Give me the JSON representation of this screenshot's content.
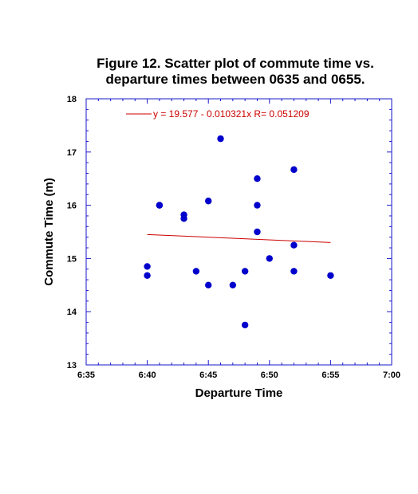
{
  "chart_data": {
    "type": "scatter",
    "title_lines": [
      "Figure 12. Scatter plot of commute time vs.",
      "departure times between 0635 and 0655."
    ],
    "xlabel": "Departure Time",
    "ylabel": "Commute Time (m)",
    "xlim": [
      "6:35",
      "7:00"
    ],
    "ylim": [
      13,
      18
    ],
    "x_ticks": [
      "6:35",
      "6:40",
      "6:45",
      "6:50",
      "6:55",
      "7:00"
    ],
    "y_ticks": [
      13,
      14,
      15,
      16,
      17,
      18
    ],
    "grid": false,
    "point_color": "#0000cc",
    "fit_color": "#cc0000",
    "axis_color": "#1a1acc",
    "fit": {
      "label": "y = 19.577 - 0.010321x   R= 0.051209",
      "x_start": "6:40",
      "y_start": 15.45,
      "x_end": "6:55",
      "y_end": 15.3
    },
    "points": [
      {
        "x": "6:40",
        "y": 14.85
      },
      {
        "x": "6:40",
        "y": 14.68
      },
      {
        "x": "6:41",
        "y": 16.0
      },
      {
        "x": "6:41",
        "y": 16.0
      },
      {
        "x": "6:43",
        "y": 15.82
      },
      {
        "x": "6:43",
        "y": 15.75
      },
      {
        "x": "6:44",
        "y": 14.76
      },
      {
        "x": "6:45",
        "y": 14.5
      },
      {
        "x": "6:45",
        "y": 16.08
      },
      {
        "x": "6:46",
        "y": 17.25
      },
      {
        "x": "6:47",
        "y": 14.5
      },
      {
        "x": "6:48",
        "y": 14.76
      },
      {
        "x": "6:48",
        "y": 13.75
      },
      {
        "x": "6:49",
        "y": 16.5
      },
      {
        "x": "6:49",
        "y": 16.0
      },
      {
        "x": "6:49",
        "y": 15.5
      },
      {
        "x": "6:50",
        "y": 15.0
      },
      {
        "x": "6:52",
        "y": 15.25
      },
      {
        "x": "6:52",
        "y": 14.76
      },
      {
        "x": "6:52",
        "y": 16.67
      },
      {
        "x": "6:55",
        "y": 14.68
      }
    ]
  }
}
